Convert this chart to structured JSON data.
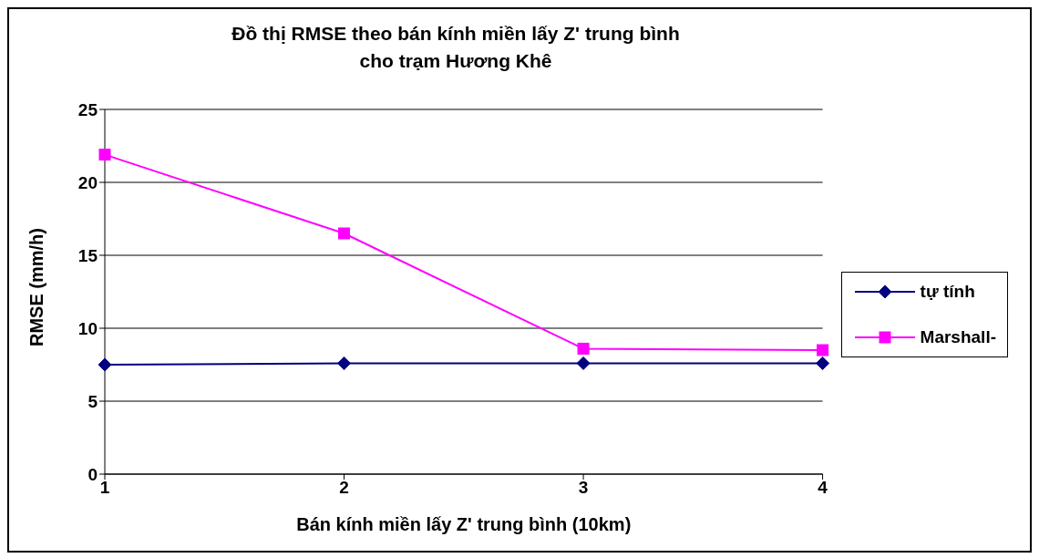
{
  "chart_data": {
    "type": "line",
    "title": "Đồ thị RMSE theo bán kính miền lấy Z' trung bình\ncho trạm Hương Khê",
    "xlabel": "Bán kính miền lấy Z' trung bình (10km)",
    "ylabel": "RMSE  (mm/h)",
    "categories": [
      "1",
      "2",
      "3",
      "4"
    ],
    "series": [
      {
        "name": "tự tính",
        "color": "#000080",
        "marker": "diamond",
        "values": [
          7.5,
          7.6,
          7.6,
          7.6
        ]
      },
      {
        "name": "Marshall-",
        "color": "#ff00ff",
        "marker": "square",
        "values": [
          21.9,
          16.5,
          8.6,
          8.5
        ]
      }
    ],
    "ylim": [
      0,
      25
    ],
    "yticks": [
      0,
      5,
      10,
      15,
      20,
      25
    ],
    "grid": "y",
    "legend": "right"
  }
}
